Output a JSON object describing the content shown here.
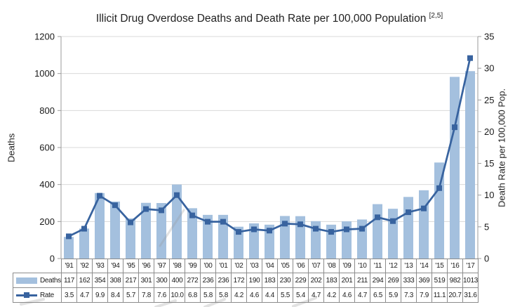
{
  "title": {
    "text": "Illicit Drug Overdose Deaths and Death Rate per 100,000 Population",
    "superscript": "[2,5]"
  },
  "chart_data": {
    "type": "combo-bar-line",
    "title": "Illicit Drug Overdose Deaths and Death Rate per 100,000 Population [2,5]",
    "categories": [
      "'91",
      "'92",
      "'93",
      "'94",
      "'95",
      "'96",
      "'97",
      "'98",
      "'99",
      "'00",
      "'01",
      "'02",
      "'03",
      "'04",
      "'05",
      "'06",
      "'07",
      "'08",
      "'09",
      "'10",
      "'11",
      "'12",
      "'13",
      "'14",
      "'15",
      "'16",
      "'17"
    ],
    "series": [
      {
        "name": "Deaths",
        "type": "bar",
        "axis": "left",
        "values": [
          117,
          162,
          354,
          308,
          217,
          301,
          300,
          400,
          272,
          236,
          236,
          172,
          190,
          183,
          230,
          229,
          202,
          183,
          201,
          211,
          294,
          269,
          333,
          369,
          519,
          982,
          1013
        ],
        "labels": [
          "117",
          "162",
          "354",
          "308",
          "217",
          "301",
          "300",
          "400",
          "272",
          "236",
          "236",
          "172",
          "190",
          "183",
          "230",
          "229",
          "202",
          "183",
          "201",
          "211",
          "294",
          "269",
          "333",
          "369",
          "519",
          "982",
          "1013"
        ]
      },
      {
        "name": "Rate",
        "type": "line",
        "axis": "right",
        "values": [
          3.5,
          4.7,
          9.9,
          8.4,
          5.7,
          7.8,
          7.6,
          10.0,
          6.8,
          5.8,
          5.8,
          4.2,
          4.6,
          4.4,
          5.5,
          5.4,
          4.7,
          4.2,
          4.6,
          4.7,
          6.5,
          5.9,
          7.3,
          7.9,
          11.1,
          20.7,
          31.6
        ],
        "labels": [
          "3.5",
          "4.7",
          "9.9",
          "8.4",
          "5.7",
          "7.8",
          "7.6",
          "10.0",
          "6.8",
          "5.8",
          "5.8",
          "4.2",
          "4.6",
          "4.4",
          "5.5",
          "5.4",
          "4.7",
          "4.2",
          "4.6",
          "4.7",
          "6.5",
          "5.9",
          "7.3",
          "7.9",
          "11.1",
          "20.7",
          "31.6"
        ]
      }
    ],
    "left_axis": {
      "label": "Deaths",
      "min": 0,
      "max": 1200,
      "step": 200,
      "ticks": [
        "0",
        "200",
        "400",
        "600",
        "800",
        "1000",
        "1200"
      ]
    },
    "right_axis": {
      "label": "Death Rate per 100,000 Pop.",
      "min": 0,
      "max": 35,
      "step": 5,
      "ticks": [
        "0",
        "5",
        "10",
        "15",
        "20",
        "25",
        "30",
        "35"
      ]
    },
    "grid": "horizontal",
    "legend_position": "table-left",
    "data_table_shown": true
  },
  "colors": {
    "bar": "#A4C0DE",
    "line": "#38639F",
    "marker": "#38639F",
    "grid": "#D9D9D9",
    "axis": "#9B9B9B",
    "table_border": "#8C8C8C",
    "text": "#1A1A1A",
    "watermark": "rgba(150,150,150,0.28)"
  }
}
